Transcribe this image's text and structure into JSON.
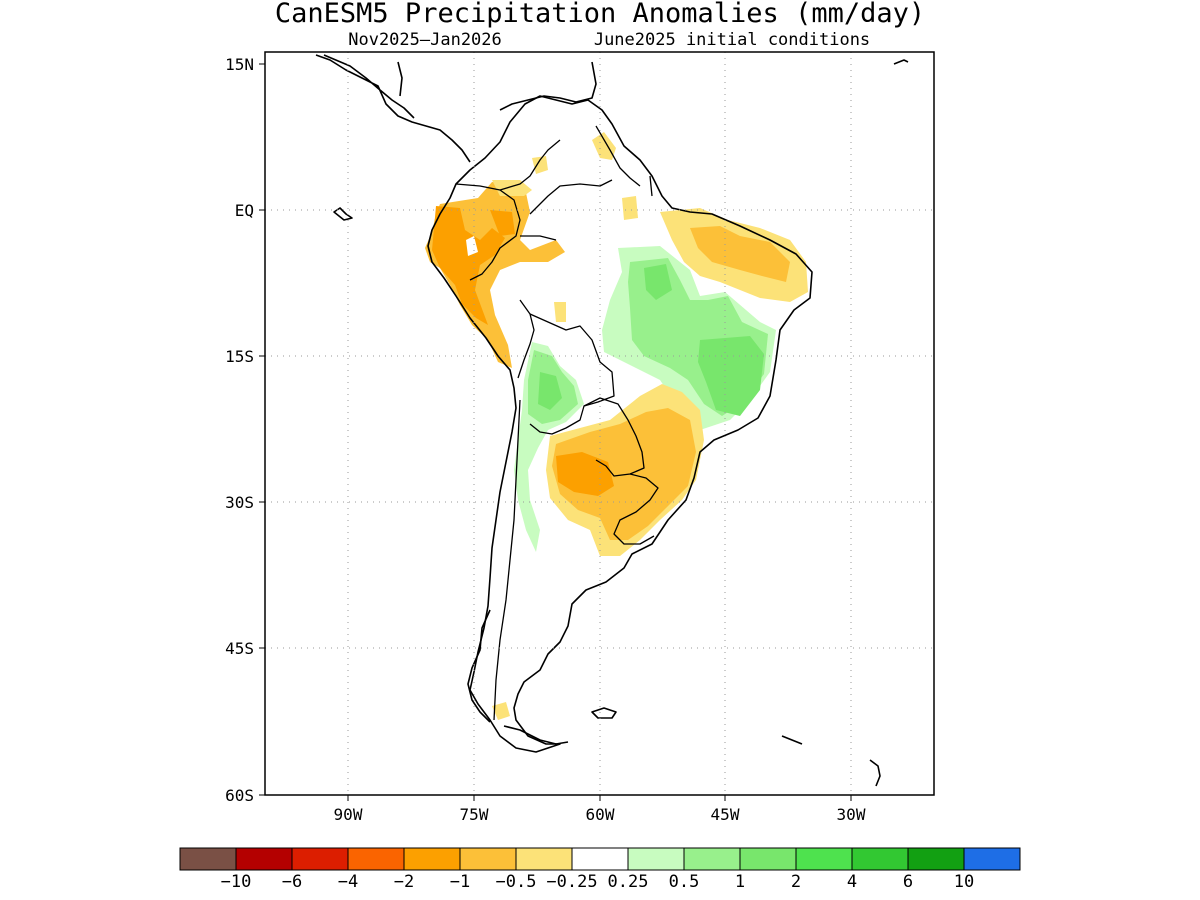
{
  "title": "CanESM5 Precipitation Anomalies (mm/day)",
  "subtitle_period": "Nov2025–Jan2026",
  "subtitle_init": "June2025 initial conditions",
  "lat_ticks": [
    "15N",
    "EQ",
    "15S",
    "30S",
    "45S",
    "60S"
  ],
  "lon_ticks": [
    "90W",
    "75W",
    "60W",
    "45W",
    "30W"
  ],
  "colorbar": {
    "labels": [
      "−10",
      "−6",
      "−4",
      "−2",
      "−1",
      "−0.5",
      "−0.25",
      "0.25",
      "0.5",
      "1",
      "2",
      "4",
      "6",
      "10"
    ],
    "colors": [
      "#7a5045",
      "#b40000",
      "#dc1e00",
      "#fa6400",
      "#fca000",
      "#fcc038",
      "#fce278",
      "#ffffff",
      "#c8fcc0",
      "#98f08c",
      "#78e66c",
      "#4ee24e",
      "#32c832",
      "#12a012",
      "#1e6ee6"
    ]
  },
  "anomaly_regions": [
    {
      "region": "Colombia/Ecuador/Peru Andes",
      "category": "-1 to -0.5"
    },
    {
      "region": "Peru highlands core",
      "category": "-2 to -1"
    },
    {
      "region": "Northeast Brazil coast",
      "category": "-1 to -0.5"
    },
    {
      "region": "Central Brazil",
      "category": "0.5 to 2"
    },
    {
      "region": "Bolivia lowlands",
      "category": "1 to 2"
    },
    {
      "region": "Paraguay / Southern Brazil",
      "category": "-1 to -0.5"
    },
    {
      "region": "Northern Argentina core",
      "category": "-2 to -1"
    },
    {
      "region": "Central Chile / Andes",
      "category": "0.25 to 1"
    }
  ]
}
